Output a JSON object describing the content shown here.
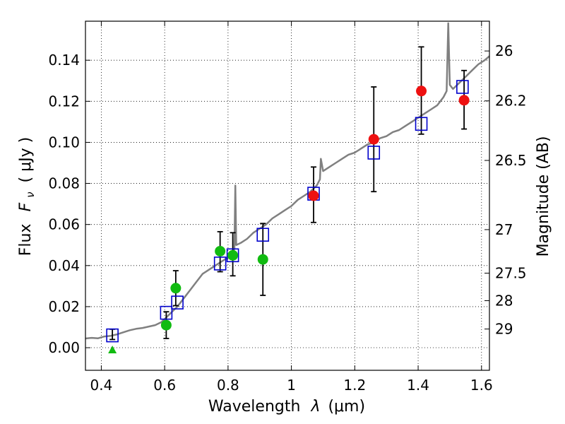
{
  "chart_data": {
    "type": "scatter",
    "title": "",
    "xlabel_text": "Wavelength",
    "xlabel_symbol": "λ",
    "xlabel_unit": "(μm)",
    "ylabel_text": "Flux",
    "ylabel_symbol": "F",
    "ylabel_subscript": "ν",
    "ylabel_unit": "( μJy )",
    "y2label": "Magnitude (AB)",
    "xlim": [
      0.35,
      1.625
    ],
    "ylim": [
      -0.011,
      0.159
    ],
    "grid": true,
    "x_ticks": [
      0.4,
      0.6,
      0.8,
      1.0,
      1.2,
      1.4,
      1.6
    ],
    "x_tick_labels": [
      "0.4",
      "0.6",
      "0.8",
      "1",
      "1.2",
      "1.4",
      "1.6"
    ],
    "y_ticks": [
      0.0,
      0.02,
      0.04,
      0.06,
      0.08,
      0.1,
      0.12,
      0.14
    ],
    "y_tick_labels": [
      "0.00",
      "0.02",
      "0.04",
      "0.06",
      "0.08",
      "0.10",
      "0.12",
      "0.14"
    ],
    "y2_ticks": [
      {
        "label": "26",
        "flux": 0.1445
      },
      {
        "label": "26.2",
        "flux": 0.1202
      },
      {
        "label": "26.5",
        "flux": 0.0912
      },
      {
        "label": "27",
        "flux": 0.0575
      },
      {
        "label": "27.5",
        "flux": 0.0363
      },
      {
        "label": "28",
        "flux": 0.0229
      },
      {
        "label": "29",
        "flux": 0.0091
      }
    ],
    "colors": {
      "model": "#808080",
      "green": "#11bb11",
      "red": "#ee1111",
      "square": "#0000cc",
      "errorbar": "#000000"
    },
    "model_spectrum": [
      [
        0.35,
        0.0045
      ],
      [
        0.37,
        0.0048
      ],
      [
        0.39,
        0.0046
      ],
      [
        0.41,
        0.0055
      ],
      [
        0.43,
        0.0058
      ],
      [
        0.45,
        0.0065
      ],
      [
        0.47,
        0.0075
      ],
      [
        0.49,
        0.0085
      ],
      [
        0.51,
        0.0092
      ],
      [
        0.53,
        0.0096
      ],
      [
        0.55,
        0.0103
      ],
      [
        0.57,
        0.011
      ],
      [
        0.59,
        0.0125
      ],
      [
        0.6,
        0.014
      ],
      [
        0.62,
        0.017
      ],
      [
        0.64,
        0.02
      ],
      [
        0.66,
        0.024
      ],
      [
        0.68,
        0.028
      ],
      [
        0.7,
        0.032
      ],
      [
        0.72,
        0.036
      ],
      [
        0.74,
        0.038
      ],
      [
        0.76,
        0.04
      ],
      [
        0.78,
        0.042
      ],
      [
        0.8,
        0.044
      ],
      [
        0.81,
        0.046
      ],
      [
        0.82,
        0.048
      ],
      [
        0.823,
        0.079
      ],
      [
        0.826,
        0.05
      ],
      [
        0.84,
        0.051
      ],
      [
        0.86,
        0.053
      ],
      [
        0.88,
        0.056
      ],
      [
        0.9,
        0.058
      ],
      [
        0.92,
        0.06
      ],
      [
        0.94,
        0.063
      ],
      [
        0.96,
        0.065
      ],
      [
        0.98,
        0.067
      ],
      [
        1.0,
        0.069
      ],
      [
        1.02,
        0.072
      ],
      [
        1.04,
        0.074
      ],
      [
        1.06,
        0.076
      ],
      [
        1.08,
        0.079
      ],
      [
        1.09,
        0.082
      ],
      [
        1.093,
        0.092
      ],
      [
        1.1,
        0.086
      ],
      [
        1.12,
        0.088
      ],
      [
        1.14,
        0.09
      ],
      [
        1.16,
        0.092
      ],
      [
        1.18,
        0.094
      ],
      [
        1.2,
        0.095
      ],
      [
        1.22,
        0.097
      ],
      [
        1.24,
        0.099
      ],
      [
        1.26,
        0.1
      ],
      [
        1.28,
        0.102
      ],
      [
        1.3,
        0.103
      ],
      [
        1.32,
        0.105
      ],
      [
        1.34,
        0.106
      ],
      [
        1.36,
        0.108
      ],
      [
        1.38,
        0.11
      ],
      [
        1.4,
        0.112
      ],
      [
        1.42,
        0.114
      ],
      [
        1.44,
        0.116
      ],
      [
        1.46,
        0.118
      ],
      [
        1.47,
        0.12
      ],
      [
        1.48,
        0.122
      ],
      [
        1.49,
        0.125
      ],
      [
        1.495,
        0.158
      ],
      [
        1.5,
        0.128
      ],
      [
        1.51,
        0.126
      ],
      [
        1.53,
        0.129
      ],
      [
        1.55,
        0.132
      ],
      [
        1.57,
        0.135
      ],
      [
        1.59,
        0.138
      ],
      [
        1.61,
        0.14
      ],
      [
        1.625,
        0.142
      ]
    ],
    "squares": [
      {
        "x": 0.435,
        "y": 0.006,
        "yerr_low": 0.004,
        "yerr_high": 0.009
      },
      {
        "x": 0.605,
        "y": 0.017
      },
      {
        "x": 0.64,
        "y": 0.022
      },
      {
        "x": 0.775,
        "y": 0.041
      },
      {
        "x": 0.815,
        "y": 0.045
      },
      {
        "x": 0.91,
        "y": 0.055
      },
      {
        "x": 1.07,
        "y": 0.075
      },
      {
        "x": 1.26,
        "y": 0.095
      },
      {
        "x": 1.41,
        "y": 0.109
      },
      {
        "x": 1.54,
        "y": 0.127
      }
    ],
    "green_points": [
      {
        "x": 0.605,
        "y": 0.011,
        "yerr_low": 0.0045,
        "yerr_high": 0.0175
      },
      {
        "x": 0.635,
        "y": 0.029,
        "yerr_low": 0.0205,
        "yerr_high": 0.0375
      },
      {
        "x": 0.775,
        "y": 0.047,
        "yerr_low": 0.037,
        "yerr_high": 0.0565
      },
      {
        "x": 0.815,
        "y": 0.045,
        "yerr_low": 0.035,
        "yerr_high": 0.056
      },
      {
        "x": 0.91,
        "y": 0.043,
        "yerr_low": 0.0255,
        "yerr_high": 0.0605
      }
    ],
    "green_triangle": {
      "x": 0.435,
      "y": -0.001
    },
    "red_points": [
      {
        "x": 1.07,
        "y": 0.074,
        "yerr_low": 0.061,
        "yerr_high": 0.088
      },
      {
        "x": 1.26,
        "y": 0.1015,
        "yerr_low": 0.076,
        "yerr_high": 0.127
      },
      {
        "x": 1.41,
        "y": 0.125,
        "yerr_low": 0.104,
        "yerr_high": 0.1465
      },
      {
        "x": 1.545,
        "y": 0.1205,
        "yerr_low": 0.1065,
        "yerr_high": 0.135
      }
    ]
  }
}
